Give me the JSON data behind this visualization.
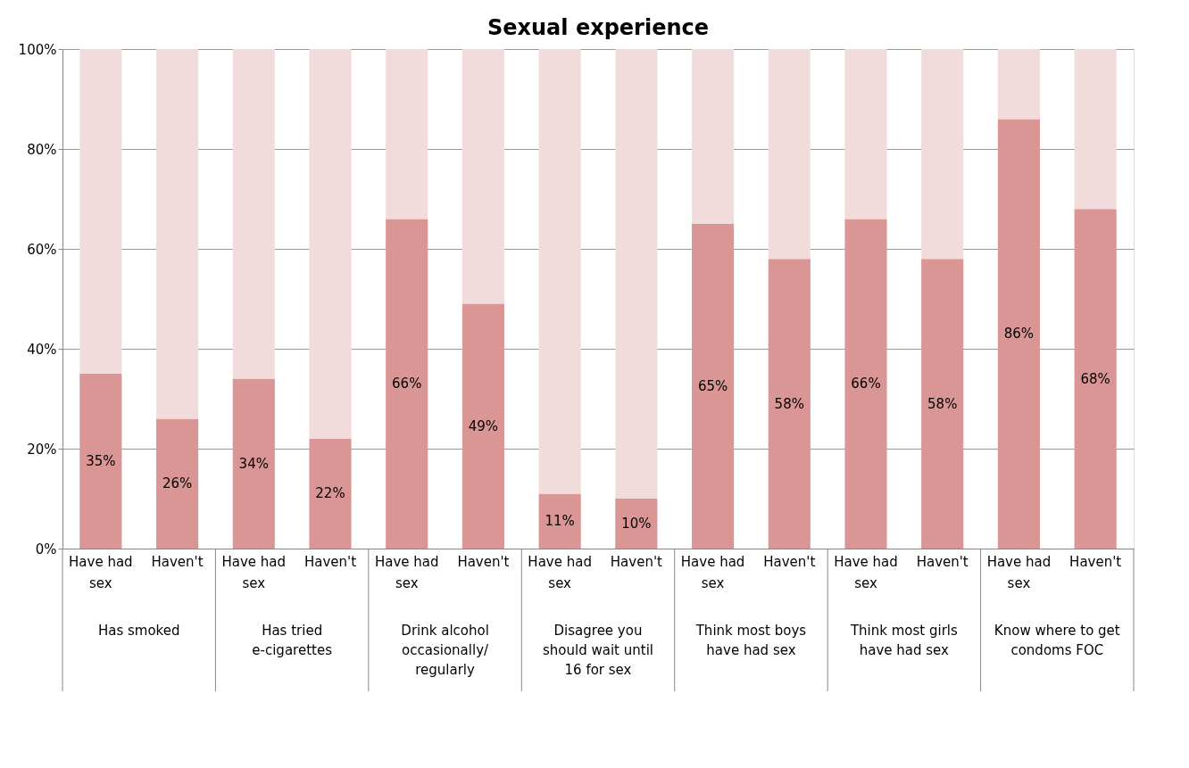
{
  "chart_data": {
    "type": "bar",
    "title": "Sexual experience",
    "stacked": true,
    "grid": "y",
    "categories": [
      "Have had sex",
      "Haven't",
      "Have had sex",
      "Haven't",
      "Have had sex",
      "Haven't",
      "Have had sex",
      "Haven't",
      "Have had sex",
      "Haven't",
      "Have had sex",
      "Haven't",
      "Have had sex",
      "Haven't"
    ],
    "annotations": [
      "Has smoked",
      "Has tried e-cigarettes",
      "Drink alcohol occasionally/ regularly",
      "Disagree you should wait until 16 for sex",
      "Think most boys have had sex",
      "Think most girls have had sex",
      "Know where to get condoms FOC"
    ],
    "ylim": [
      0,
      100
    ],
    "yticks": [
      {
        "value": 0,
        "label": "0%"
      },
      {
        "value": 20,
        "label": "20%"
      },
      {
        "value": 40,
        "label": "40%"
      },
      {
        "value": 60,
        "label": "60%"
      },
      {
        "value": 80,
        "label": "80%"
      },
      {
        "value": 100,
        "label": "100%"
      }
    ],
    "series": [
      {
        "color": "#d99694",
        "values": [
          35,
          26,
          34,
          22,
          66,
          49,
          11,
          10,
          65,
          58,
          66,
          58,
          86,
          68
        ],
        "value_labels": [
          "35%",
          "26%",
          "34%",
          "22%",
          "66%",
          "49%",
          "11%",
          "10%",
          "65%",
          "58%",
          "66%",
          "58%",
          "86%",
          "68%"
        ]
      },
      {
        "color": "#f2dcdb",
        "values": [
          65,
          74,
          66,
          78,
          34,
          51,
          89,
          90,
          35,
          42,
          34,
          42,
          14,
          32
        ]
      }
    ]
  }
}
